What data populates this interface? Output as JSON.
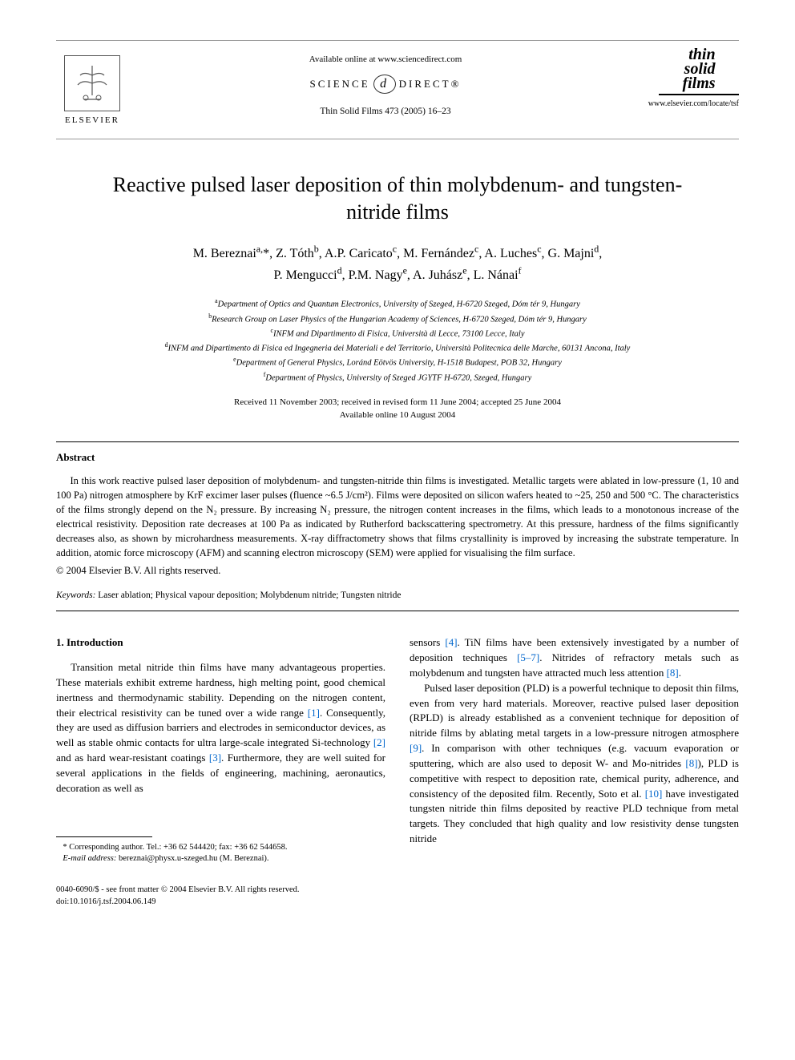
{
  "header": {
    "available_online": "Available online at www.sciencedirect.com",
    "sciencedirect_left": "SCIENCE",
    "sciencedirect_icon": "d",
    "sciencedirect_right": "DIRECT®",
    "journal_ref": "Thin Solid Films 473 (2005) 16–23",
    "publisher": "ELSEVIER",
    "journal_logo_line1": "thin",
    "journal_logo_line2": "solid",
    "journal_logo_line3": "films",
    "journal_url": "www.elsevier.com/locate/tsf"
  },
  "title": "Reactive pulsed laser deposition of thin molybdenum- and tungsten-nitride films",
  "authors_line1_html": "M. Bereznai<sup>a,</sup>*, Z. Tóth<sup>b</sup>, A.P. Caricato<sup>c</sup>, M. Fernández<sup>c</sup>, A. Luches<sup>c</sup>, G. Majni<sup>d</sup>,",
  "authors_line2_html": "P. Mengucci<sup>d</sup>, P.M. Nagy<sup>e</sup>, A. Juhász<sup>e</sup>, L. Nánai<sup>f</sup>",
  "affiliations": {
    "a": "Department of Optics and Quantum Electronics, University of Szeged, H-6720 Szeged, Dóm tér 9, Hungary",
    "b": "Research Group on Laser Physics of the Hungarian Academy of Sciences, H-6720 Szeged, Dóm tér 9, Hungary",
    "c": "INFM and Dipartimento di Fisica, Università di Lecce, 73100 Lecce, Italy",
    "d": "INFM and Dipartimento di Fisica ed Ingegneria dei Materiali e del Territorio, Università Politecnica delle Marche, 60131 Ancona, Italy",
    "e": "Department of General Physics, Loránd Eötvös University, H-1518 Budapest, POB 32, Hungary",
    "f": "Department of Physics, University of Szeged JGYTF H-6720, Szeged, Hungary"
  },
  "dates": {
    "received": "Received 11 November 2003; received in revised form 11 June 2004; accepted 25 June 2004",
    "available": "Available online 10 August 2004"
  },
  "abstract": {
    "heading": "Abstract",
    "text": "In this work reactive pulsed laser deposition of molybdenum- and tungsten-nitride thin films is investigated. Metallic targets were ablated in low-pressure (1, 10 and 100 Pa) nitrogen atmosphere by KrF excimer laser pulses (fluence ~6.5 J/cm²). Films were deposited on silicon wafers heated to ~25, 250 and 500 °C. The characteristics of the films strongly depend on the N₂ pressure. By increasing N₂ pressure, the nitrogen content increases in the films, which leads to a monotonous increase of the electrical resistivity. Deposition rate decreases at 100 Pa as indicated by Rutherford backscattering spectrometry. At this pressure, hardness of the films significantly decreases also, as shown by microhardness measurements. X-ray diffractometry shows that films crystallinity is improved by increasing the substrate temperature. In addition, atomic force microscopy (AFM) and scanning electron microscopy (SEM) were applied for visualising the film surface.",
    "copyright": "© 2004 Elsevier B.V. All rights reserved."
  },
  "keywords": {
    "label": "Keywords:",
    "text": " Laser ablation; Physical vapour deposition; Molybdenum nitride; Tungsten nitride"
  },
  "section1": {
    "heading": "1. Introduction",
    "col1_p1_a": "Transition metal nitride thin films have many advantageous properties. These materials exhibit extreme hardness, high melting point, good chemical inertness and thermodynamic stability. Depending on the nitrogen content, their electrical resistivity can be tuned over a wide range ",
    "ref1": "[1]",
    "col1_p1_b": ". Consequently, they are used as diffusion barriers and electrodes in semiconductor devices, as well as stable ohmic contacts for ultra large-scale integrated Si-technology ",
    "ref2": "[2]",
    "col1_p1_c": " and as hard wear-resistant coatings ",
    "ref3": "[3]",
    "col1_p1_d": ". Furthermore, they are well suited for several applications in the fields of engineering, machining, aeronautics, decoration as well as",
    "col2_p1_a": "sensors ",
    "ref4": "[4]",
    "col2_p1_b": ". TiN films have been extensively investigated by a number of deposition techniques ",
    "ref57": "[5–7]",
    "col2_p1_c": ". Nitrides of refractory metals such as molybdenum and tungsten have attracted much less attention ",
    "ref8": "[8]",
    "col2_p1_d": ".",
    "col2_p2_a": "Pulsed laser deposition (PLD) is a powerful technique to deposit thin films, even from very hard materials. Moreover, reactive pulsed laser deposition (RPLD) is already established as a convenient technique for deposition of nitride films by ablating metal targets in a low-pressure nitrogen atmosphere ",
    "ref9": "[9]",
    "col2_p2_b": ". In comparison with other techniques (e.g. vacuum evaporation or sputtering, which are also used to deposit W- and Mo-nitrides ",
    "ref8b": "[8]",
    "col2_p2_c": "), PLD is competitive with respect to deposition rate, chemical purity, adherence, and consistency of the deposited film. Recently, Soto et al. ",
    "ref10": "[10]",
    "col2_p2_d": " have investigated tungsten nitride thin films deposited by reactive PLD technique from metal targets. They concluded that high quality and low resistivity dense tungsten nitride"
  },
  "footnote": {
    "corresponding": "* Corresponding author. Tel.: +36 62 544420; fax: +36 62 544658.",
    "email_label": "E-mail address:",
    "email": " bereznai@physx.u-szeged.hu (M. Bereznai)."
  },
  "footer": {
    "line1": "0040-6090/$ - see front matter © 2004 Elsevier B.V. All rights reserved.",
    "line2": "doi:10.1016/j.tsf.2004.06.149"
  },
  "colors": {
    "link": "#0066cc",
    "text": "#000000",
    "background": "#ffffff",
    "rule": "#999999"
  }
}
